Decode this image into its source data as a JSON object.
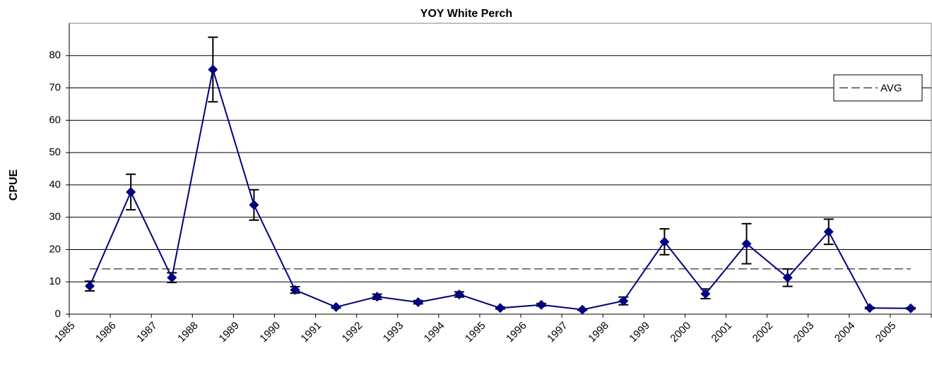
{
  "chart_data": {
    "type": "line",
    "title": "YOY White Perch",
    "y_label": "CPUE",
    "categories": [
      "1985",
      "1986",
      "1987",
      "1988",
      "1989",
      "1990",
      "1991",
      "1992",
      "1993",
      "1994",
      "1995",
      "1996",
      "1997",
      "1998",
      "1999",
      "2000",
      "2001",
      "2002",
      "2003",
      "2004",
      "2005"
    ],
    "values": [
      8.7,
      37.8,
      11.3,
      75.7,
      33.8,
      7.5,
      2.2,
      5.4,
      3.7,
      6.1,
      1.9,
      2.9,
      1.4,
      4.1,
      22.4,
      6.3,
      21.8,
      11.3,
      25.5,
      1.9,
      1.8
    ],
    "errors": [
      1.5,
      5.5,
      1.5,
      10,
      4.7,
      1,
      0.3,
      0.8,
      0.5,
      0.8,
      0.3,
      0.4,
      0.2,
      1.2,
      4,
      1.5,
      6.2,
      2.7,
      3.9,
      0.2,
      0.2
    ],
    "color": "#000080",
    "error_color": "#000000",
    "avg": {
      "name": "AVG",
      "value": 14.0,
      "color": "#000000"
    },
    "ylim": [
      0,
      90
    ],
    "yticks": [
      0,
      10,
      20,
      30,
      40,
      50,
      60,
      70,
      80
    ],
    "grid": true,
    "legend": "upper right"
  }
}
